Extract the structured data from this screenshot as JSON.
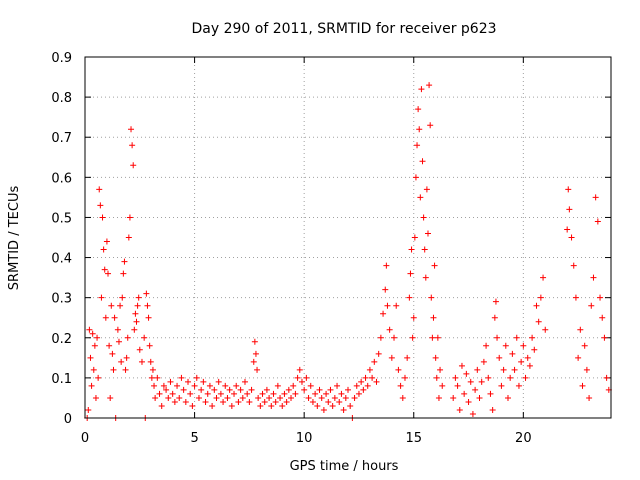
{
  "chart_data": {
    "type": "scatter",
    "title": "Day 290 of 2011, SRMTID for receiver p623",
    "xlabel": "GPS time / hours",
    "ylabel": "SRMTID / TECUs",
    "xlim": [
      0,
      24
    ],
    "ylim": [
      0,
      0.9
    ],
    "x_ticks": [
      0,
      5,
      10,
      15,
      20
    ],
    "x_tick_labels": [
      "0",
      "5",
      "10",
      "15",
      "20"
    ],
    "y_ticks": [
      0,
      0.1,
      0.2,
      0.3,
      0.4,
      0.5,
      0.6,
      0.7,
      0.8,
      0.9
    ],
    "y_tick_labels": [
      "0",
      "0.1",
      "0.2",
      "0.3",
      "0.4",
      "0.5",
      "0.6",
      "0.7",
      "0.8",
      "0.9"
    ],
    "grid": true,
    "marker": "+",
    "color": "#ff0000",
    "series": [
      {
        "name": "SRMTID",
        "points": [
          [
            0.1,
            0.0
          ],
          [
            0.15,
            0.02
          ],
          [
            0.2,
            0.22
          ],
          [
            0.25,
            0.15
          ],
          [
            0.3,
            0.08
          ],
          [
            0.35,
            0.21
          ],
          [
            0.4,
            0.12
          ],
          [
            0.45,
            0.18
          ],
          [
            0.5,
            0.05
          ],
          [
            0.55,
            0.2
          ],
          [
            0.6,
            0.1
          ],
          [
            0.65,
            0.57
          ],
          [
            0.7,
            0.53
          ],
          [
            0.75,
            0.3
          ],
          [
            0.8,
            0.5
          ],
          [
            0.85,
            0.42
          ],
          [
            0.9,
            0.37
          ],
          [
            0.95,
            0.25
          ],
          [
            1.0,
            0.44
          ],
          [
            1.05,
            0.36
          ],
          [
            1.1,
            0.18
          ],
          [
            1.15,
            0.05
          ],
          [
            1.2,
            0.28
          ],
          [
            1.25,
            0.16
          ],
          [
            1.3,
            0.12
          ],
          [
            1.35,
            0.25
          ],
          [
            1.4,
            0.0
          ],
          [
            1.5,
            0.22
          ],
          [
            1.55,
            0.19
          ],
          [
            1.6,
            0.28
          ],
          [
            1.65,
            0.14
          ],
          [
            1.7,
            0.3
          ],
          [
            1.75,
            0.36
          ],
          [
            1.8,
            0.39
          ],
          [
            1.85,
            0.12
          ],
          [
            1.9,
            0.15
          ],
          [
            1.95,
            0.2
          ],
          [
            2.0,
            0.45
          ],
          [
            2.05,
            0.5
          ],
          [
            2.1,
            0.72
          ],
          [
            2.15,
            0.68
          ],
          [
            2.2,
            0.63
          ],
          [
            2.25,
            0.22
          ],
          [
            2.3,
            0.26
          ],
          [
            2.35,
            0.24
          ],
          [
            2.4,
            0.28
          ],
          [
            2.45,
            0.3
          ],
          [
            2.5,
            0.17
          ],
          [
            2.6,
            0.14
          ],
          [
            2.7,
            0.2
          ],
          [
            2.75,
            0.0
          ],
          [
            2.8,
            0.31
          ],
          [
            2.85,
            0.28
          ],
          [
            2.9,
            0.25
          ],
          [
            2.95,
            0.18
          ],
          [
            3.0,
            0.14
          ],
          [
            3.05,
            0.1
          ],
          [
            3.1,
            0.12
          ],
          [
            3.15,
            0.08
          ],
          [
            3.2,
            0.05
          ],
          [
            3.3,
            0.1
          ],
          [
            3.4,
            0.06
          ],
          [
            3.5,
            0.03
          ],
          [
            3.6,
            0.08
          ],
          [
            3.7,
            0.07
          ],
          [
            3.8,
            0.05
          ],
          [
            3.9,
            0.09
          ],
          [
            4.0,
            0.06
          ],
          [
            4.1,
            0.04
          ],
          [
            4.2,
            0.08
          ],
          [
            4.3,
            0.05
          ],
          [
            4.4,
            0.1
          ],
          [
            4.5,
            0.07
          ],
          [
            4.6,
            0.04
          ],
          [
            4.7,
            0.09
          ],
          [
            4.8,
            0.06
          ],
          [
            4.9,
            0.03
          ],
          [
            5.0,
            0.08
          ],
          [
            5.1,
            0.1
          ],
          [
            5.2,
            0.05
          ],
          [
            5.3,
            0.07
          ],
          [
            5.4,
            0.09
          ],
          [
            5.5,
            0.04
          ],
          [
            5.6,
            0.06
          ],
          [
            5.7,
            0.08
          ],
          [
            5.8,
            0.03
          ],
          [
            5.9,
            0.07
          ],
          [
            6.0,
            0.05
          ],
          [
            6.1,
            0.09
          ],
          [
            6.2,
            0.06
          ],
          [
            6.3,
            0.04
          ],
          [
            6.4,
            0.08
          ],
          [
            6.5,
            0.05
          ],
          [
            6.6,
            0.07
          ],
          [
            6.7,
            0.03
          ],
          [
            6.8,
            0.06
          ],
          [
            6.9,
            0.08
          ],
          [
            7.0,
            0.04
          ],
          [
            7.1,
            0.07
          ],
          [
            7.2,
            0.05
          ],
          [
            7.3,
            0.09
          ],
          [
            7.4,
            0.06
          ],
          [
            7.5,
            0.04
          ],
          [
            7.6,
            0.07
          ],
          [
            7.7,
            0.14
          ],
          [
            7.75,
            0.19
          ],
          [
            7.8,
            0.16
          ],
          [
            7.85,
            0.12
          ],
          [
            7.9,
            0.05
          ],
          [
            8.0,
            0.03
          ],
          [
            8.1,
            0.06
          ],
          [
            8.2,
            0.04
          ],
          [
            8.3,
            0.07
          ],
          [
            8.4,
            0.05
          ],
          [
            8.5,
            0.03
          ],
          [
            8.6,
            0.06
          ],
          [
            8.7,
            0.04
          ],
          [
            8.8,
            0.08
          ],
          [
            8.9,
            0.05
          ],
          [
            9.0,
            0.03
          ],
          [
            9.1,
            0.06
          ],
          [
            9.2,
            0.04
          ],
          [
            9.3,
            0.07
          ],
          [
            9.4,
            0.05
          ],
          [
            9.5,
            0.08
          ],
          [
            9.6,
            0.06
          ],
          [
            9.7,
            0.1
          ],
          [
            9.8,
            0.12
          ],
          [
            9.9,
            0.09
          ],
          [
            10.0,
            0.07
          ],
          [
            10.1,
            0.1
          ],
          [
            10.2,
            0.05
          ],
          [
            10.3,
            0.08
          ],
          [
            10.4,
            0.04
          ],
          [
            10.5,
            0.06
          ],
          [
            10.6,
            0.03
          ],
          [
            10.7,
            0.07
          ],
          [
            10.8,
            0.05
          ],
          [
            10.9,
            0.02
          ],
          [
            11.0,
            0.06
          ],
          [
            11.1,
            0.04
          ],
          [
            11.2,
            0.07
          ],
          [
            11.3,
            0.03
          ],
          [
            11.4,
            0.05
          ],
          [
            11.5,
            0.08
          ],
          [
            11.6,
            0.04
          ],
          [
            11.7,
            0.06
          ],
          [
            11.8,
            0.02
          ],
          [
            11.9,
            0.05
          ],
          [
            12.0,
            0.07
          ],
          [
            12.1,
            0.03
          ],
          [
            12.2,
            0.0
          ],
          [
            12.3,
            0.05
          ],
          [
            12.4,
            0.08
          ],
          [
            12.5,
            0.06
          ],
          [
            12.6,
            0.09
          ],
          [
            12.7,
            0.07
          ],
          [
            12.8,
            0.1
          ],
          [
            12.9,
            0.08
          ],
          [
            13.0,
            0.12
          ],
          [
            13.1,
            0.1
          ],
          [
            13.2,
            0.14
          ],
          [
            13.3,
            0.09
          ],
          [
            13.4,
            0.16
          ],
          [
            13.5,
            0.2
          ],
          [
            13.6,
            0.26
          ],
          [
            13.7,
            0.32
          ],
          [
            13.75,
            0.38
          ],
          [
            13.8,
            0.28
          ],
          [
            13.9,
            0.22
          ],
          [
            14.0,
            0.15
          ],
          [
            14.1,
            0.2
          ],
          [
            14.2,
            0.28
          ],
          [
            14.3,
            0.12
          ],
          [
            14.4,
            0.08
          ],
          [
            14.5,
            0.05
          ],
          [
            14.6,
            0.1
          ],
          [
            14.7,
            0.15
          ],
          [
            14.8,
            0.3
          ],
          [
            14.85,
            0.36
          ],
          [
            14.9,
            0.42
          ],
          [
            14.95,
            0.2
          ],
          [
            15.0,
            0.25
          ],
          [
            15.05,
            0.45
          ],
          [
            15.1,
            0.6
          ],
          [
            15.15,
            0.68
          ],
          [
            15.2,
            0.77
          ],
          [
            15.25,
            0.72
          ],
          [
            15.3,
            0.55
          ],
          [
            15.35,
            0.82
          ],
          [
            15.4,
            0.64
          ],
          [
            15.45,
            0.5
          ],
          [
            15.5,
            0.42
          ],
          [
            15.55,
            0.35
          ],
          [
            15.6,
            0.57
          ],
          [
            15.65,
            0.46
          ],
          [
            15.7,
            0.83
          ],
          [
            15.75,
            0.73
          ],
          [
            15.8,
            0.3
          ],
          [
            15.85,
            0.2
          ],
          [
            15.9,
            0.25
          ],
          [
            15.95,
            0.38
          ],
          [
            16.0,
            0.15
          ],
          [
            16.05,
            0.1
          ],
          [
            16.1,
            0.2
          ],
          [
            16.15,
            0.05
          ],
          [
            16.2,
            0.12
          ],
          [
            16.3,
            0.08
          ],
          [
            16.8,
            0.05
          ],
          [
            16.9,
            0.1
          ],
          [
            17.0,
            0.08
          ],
          [
            17.1,
            0.02
          ],
          [
            17.2,
            0.13
          ],
          [
            17.3,
            0.06
          ],
          [
            17.4,
            0.11
          ],
          [
            17.5,
            0.04
          ],
          [
            17.6,
            0.09
          ],
          [
            17.7,
            0.01
          ],
          [
            17.8,
            0.07
          ],
          [
            17.9,
            0.12
          ],
          [
            18.0,
            0.05
          ],
          [
            18.1,
            0.09
          ],
          [
            18.2,
            0.14
          ],
          [
            18.3,
            0.18
          ],
          [
            18.4,
            0.1
          ],
          [
            18.5,
            0.06
          ],
          [
            18.6,
            0.02
          ],
          [
            18.7,
            0.25
          ],
          [
            18.75,
            0.29
          ],
          [
            18.8,
            0.2
          ],
          [
            18.9,
            0.15
          ],
          [
            19.0,
            0.08
          ],
          [
            19.1,
            0.12
          ],
          [
            19.2,
            0.18
          ],
          [
            19.3,
            0.05
          ],
          [
            19.4,
            0.1
          ],
          [
            19.5,
            0.16
          ],
          [
            19.6,
            0.12
          ],
          [
            19.7,
            0.2
          ],
          [
            19.8,
            0.08
          ],
          [
            19.9,
            0.14
          ],
          [
            20.0,
            0.18
          ],
          [
            20.1,
            0.1
          ],
          [
            20.2,
            0.15
          ],
          [
            20.3,
            0.13
          ],
          [
            20.4,
            0.2
          ],
          [
            20.5,
            0.17
          ],
          [
            20.6,
            0.28
          ],
          [
            20.7,
            0.24
          ],
          [
            20.8,
            0.3
          ],
          [
            20.9,
            0.35
          ],
          [
            21.0,
            0.22
          ],
          [
            22.0,
            0.47
          ],
          [
            22.05,
            0.57
          ],
          [
            22.1,
            0.52
          ],
          [
            22.2,
            0.45
          ],
          [
            22.3,
            0.38
          ],
          [
            22.4,
            0.3
          ],
          [
            22.5,
            0.15
          ],
          [
            22.6,
            0.22
          ],
          [
            22.7,
            0.08
          ],
          [
            22.8,
            0.18
          ],
          [
            22.9,
            0.12
          ],
          [
            23.0,
            0.05
          ],
          [
            23.1,
            0.28
          ],
          [
            23.2,
            0.35
          ],
          [
            23.3,
            0.55
          ],
          [
            23.4,
            0.49
          ],
          [
            23.5,
            0.3
          ],
          [
            23.6,
            0.25
          ],
          [
            23.7,
            0.2
          ],
          [
            23.8,
            0.1
          ],
          [
            23.9,
            0.07
          ]
        ]
      }
    ]
  }
}
